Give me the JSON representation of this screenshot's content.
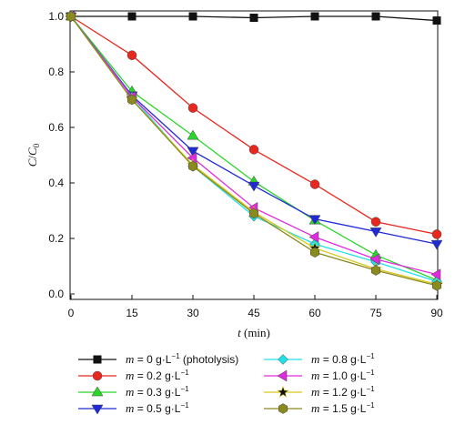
{
  "chart_data": {
    "type": "line",
    "x": [
      0,
      15,
      30,
      45,
      60,
      75,
      90
    ],
    "xlabel": "t (min)",
    "xlabel_parts": {
      "var": "t",
      "unit": " (min)"
    },
    "ylabel": "C/C0",
    "ylabel_parts": {
      "c1": "C",
      "slash": "/",
      "c2": "C",
      "sub": "0"
    },
    "xlim": [
      0,
      90
    ],
    "ylim": [
      0,
      1.0
    ],
    "x_ticks": [
      "0",
      "15",
      "30",
      "45",
      "60",
      "75",
      "90"
    ],
    "y_ticks": [
      "0.0",
      "0.2",
      "0.4",
      "0.6",
      "0.8",
      "1.0"
    ],
    "grid": false,
    "legend_position": "below",
    "series": [
      {
        "name": "m = 0 g·L−1 (photolysis)",
        "legend": {
          "var": "m",
          "eq": " = 0 g·L",
          "sup": "−1",
          "tail": " (photolysis)"
        },
        "color": "#111111",
        "marker": "square",
        "values": [
          1.0,
          1.0,
          1.0,
          0.995,
          1.0,
          1.0,
          0.985
        ]
      },
      {
        "name": "m = 0.2 g·L−1",
        "legend": {
          "var": "m",
          "eq": " = 0.2 g·L",
          "sup": "−1",
          "tail": ""
        },
        "color": "#e8271e",
        "marker": "circle",
        "values": [
          1.0,
          0.86,
          0.67,
          0.52,
          0.395,
          0.26,
          0.215
        ]
      },
      {
        "name": "m = 0.3 g·L−1",
        "legend": {
          "var": "m",
          "eq": " = 0.3 g·L",
          "sup": "−1",
          "tail": ""
        },
        "color": "#2bd62b",
        "marker": "triangle-up",
        "values": [
          1.0,
          0.73,
          0.57,
          0.405,
          0.265,
          0.14,
          0.05
        ]
      },
      {
        "name": "m = 0.5 g·L−1",
        "legend": {
          "var": "m",
          "eq": " = 0.5 g·L",
          "sup": "−1",
          "tail": ""
        },
        "color": "#1f2ad4",
        "marker": "triangle-down",
        "values": [
          1.0,
          0.715,
          0.515,
          0.39,
          0.27,
          0.225,
          0.18
        ]
      },
      {
        "name": "m = 0.8 g·L−1",
        "legend": {
          "var": "m",
          "eq": " = 0.8 g·L",
          "sup": "−1",
          "tail": ""
        },
        "color": "#22e0e8",
        "marker": "diamond",
        "values": [
          1.0,
          0.71,
          0.46,
          0.28,
          0.18,
          0.115,
          0.045
        ]
      },
      {
        "name": "m = 1.0 g·L−1",
        "legend": {
          "var": "m",
          "eq": " = 1.0 g·L",
          "sup": "−1",
          "tail": ""
        },
        "color": "#e02ae0",
        "marker": "triangle-left",
        "values": [
          1.0,
          0.71,
          0.49,
          0.31,
          0.205,
          0.125,
          0.07
        ]
      },
      {
        "name": "m = 1.2 g·L−1",
        "legend": {
          "var": "m",
          "eq": " = 1.2 g·L",
          "sup": "−1",
          "tail": ""
        },
        "color": "#d8c81e",
        "marker": "star",
        "values": [
          1.0,
          0.7,
          0.465,
          0.295,
          0.165,
          0.09,
          0.035
        ]
      },
      {
        "name": "m = 1.5 g·L−1",
        "legend": {
          "var": "m",
          "eq": " = 1.5 g·L",
          "sup": "−1",
          "tail": ""
        },
        "color": "#8a8a1e",
        "marker": "hexagon",
        "values": [
          1.0,
          0.7,
          0.46,
          0.29,
          0.15,
          0.085,
          0.03
        ]
      }
    ]
  }
}
